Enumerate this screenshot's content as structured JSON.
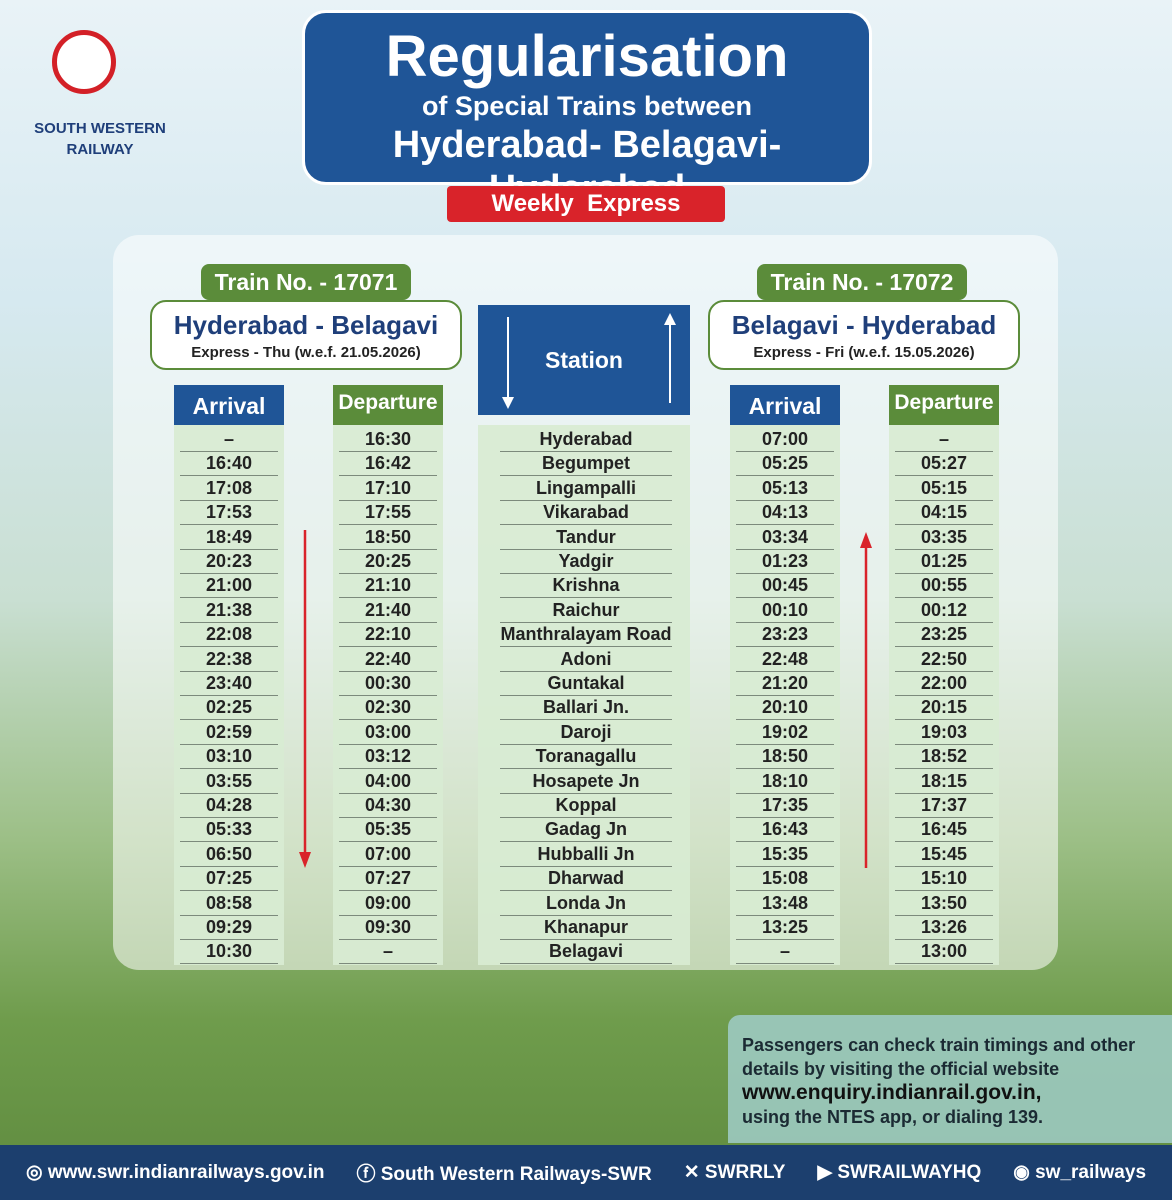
{
  "logo": {
    "name_line1": "SOUTH WESTERN",
    "name_line2": "RAILWAY"
  },
  "header": {
    "title": "Regularisation",
    "subtitle": "of Special Trains between",
    "route": "Hyderabad- Belagavi- Hyderabad",
    "badge": "Weekly  Express"
  },
  "timetable": {
    "left": {
      "train_no": "Train No. - 17071",
      "route": "Hyderabad - Belagavi",
      "days": "Express - Thu (w.e.f. 21.05.2026)",
      "arrival_header": "Arrival",
      "departure_header": "Departure",
      "arrival": [
        "–",
        "16:40",
        "17:08",
        "17:53",
        "18:49",
        "20:23",
        "21:00",
        "21:38",
        "22:08",
        "22:38",
        "23:40",
        "02:25",
        "02:59",
        "03:10",
        "03:55",
        "04:28",
        "05:33",
        "06:50",
        "07:25",
        "08:58",
        "09:29",
        "10:30"
      ],
      "departure": [
        "16:30",
        "16:42",
        "17:10",
        "17:55",
        "18:50",
        "20:25",
        "21:10",
        "21:40",
        "22:10",
        "22:40",
        "00:30",
        "02:30",
        "03:00",
        "03:12",
        "04:00",
        "04:30",
        "05:35",
        "07:00",
        "07:27",
        "09:00",
        "09:30",
        "–"
      ]
    },
    "station_header": "Station",
    "stations": [
      "Hyderabad",
      "Begumpet",
      "Lingampalli",
      "Vikarabad",
      "Tandur",
      "Yadgir",
      "Krishna",
      "Raichur",
      "Manthralayam Road",
      "Adoni",
      "Guntakal",
      "Ballari Jn.",
      "Daroji",
      "Toranagallu",
      "Hosapete Jn",
      "Koppal",
      "Gadag Jn",
      "Hubballi Jn",
      "Dharwad",
      "Londa Jn",
      "Khanapur",
      "Belagavi"
    ],
    "right": {
      "train_no": "Train No. - 17072",
      "route": "Belagavi - Hyderabad",
      "days": "Express - Fri (w.e.f. 15.05.2026)",
      "arrival_header": "Arrival",
      "departure_header": "Departure",
      "arrival": [
        "07:00",
        "05:25",
        "05:13",
        "04:13",
        "03:34",
        "01:23",
        "00:45",
        "00:10",
        "23:23",
        "22:48",
        "21:20",
        "20:10",
        "19:02",
        "18:50",
        "18:10",
        "17:35",
        "16:43",
        "15:35",
        "15:08",
        "13:48",
        "13:25",
        "–"
      ],
      "departure": [
        "–",
        "05:27",
        "05:15",
        "04:15",
        "03:35",
        "01:25",
        "00:55",
        "00:12",
        "23:25",
        "22:50",
        "22:00",
        "20:15",
        "19:03",
        "18:52",
        "18:15",
        "17:37",
        "16:45",
        "15:45",
        "15:10",
        "13:50",
        "13:26",
        "13:00"
      ]
    }
  },
  "note": {
    "text": "Passengers can check train timings and other details by visiting the official website",
    "website": "www.enquiry.indianrail.gov.in,",
    "tail": "using the NTES app, or dialing 139."
  },
  "footer": {
    "website": "www.swr.indianrailways.gov.in",
    "facebook": "South Western Railways-SWR",
    "x": "SWRRLY",
    "youtube": "SWRAILWAYHQ",
    "instagram": "sw_railways"
  }
}
